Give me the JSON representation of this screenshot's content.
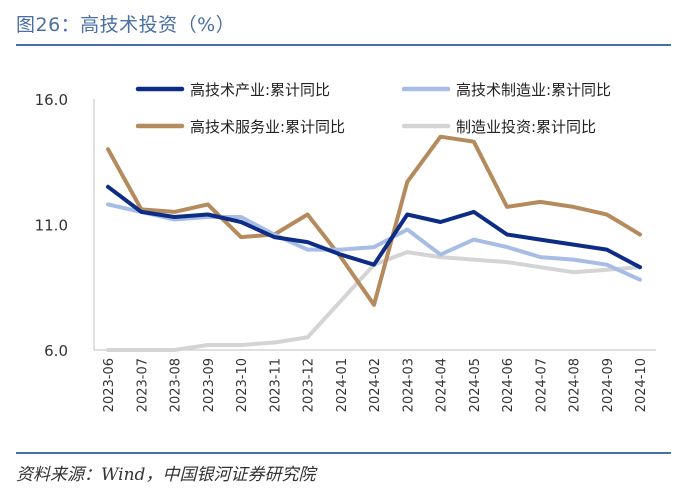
{
  "header": {
    "title": "图26：高技术投资（%）"
  },
  "footer": {
    "source": "资料来源：Wind，中国银河证券研究院"
  },
  "chart_data": {
    "type": "line",
    "title": "",
    "xlabel": "",
    "ylabel": "",
    "ylim": [
      6.0,
      16.0
    ],
    "yticks": [
      "16.0",
      "11.0",
      "6.0"
    ],
    "grid": false,
    "legend_position": "top",
    "categories": [
      "2023-06",
      "2023-07",
      "2023-08",
      "2023-09",
      "2023-10",
      "2023-11",
      "2023-12",
      "2024-01",
      "2024-02",
      "2024-03",
      "2024-04",
      "2024-05",
      "2024-06",
      "2024-07",
      "2024-08",
      "2024-09",
      "2024-10"
    ],
    "series": [
      {
        "name": "高技术产业:累计同比",
        "color": "#0d2c86",
        "values": [
          12.5,
          11.5,
          11.3,
          11.4,
          11.1,
          10.5,
          10.3,
          9.8,
          9.4,
          11.4,
          11.1,
          11.5,
          10.6,
          10.4,
          10.2,
          10.0,
          9.3
        ]
      },
      {
        "name": "高技术制造业:累计同比",
        "color": "#a8bde6",
        "values": [
          11.8,
          11.5,
          11.2,
          11.3,
          11.3,
          10.6,
          10.0,
          10.0,
          10.1,
          10.8,
          9.8,
          10.4,
          10.1,
          9.7,
          9.6,
          9.4,
          8.8
        ]
      },
      {
        "name": "高技术服务业:累计同比",
        "color": "#b58a5c",
        "values": [
          14.0,
          11.6,
          11.5,
          11.8,
          10.5,
          10.6,
          11.4,
          9.7,
          7.8,
          12.7,
          14.5,
          14.3,
          11.7,
          11.9,
          11.7,
          11.4,
          10.6
        ]
      },
      {
        "name": "制造业投资:累计同比",
        "color": "#d4d4d4",
        "values": [
          6.0,
          5.7,
          5.9,
          6.2,
          6.2,
          6.3,
          6.5,
          null,
          9.4,
          9.9,
          9.7,
          9.6,
          9.5,
          9.3,
          9.1,
          9.2,
          9.3
        ]
      }
    ]
  }
}
